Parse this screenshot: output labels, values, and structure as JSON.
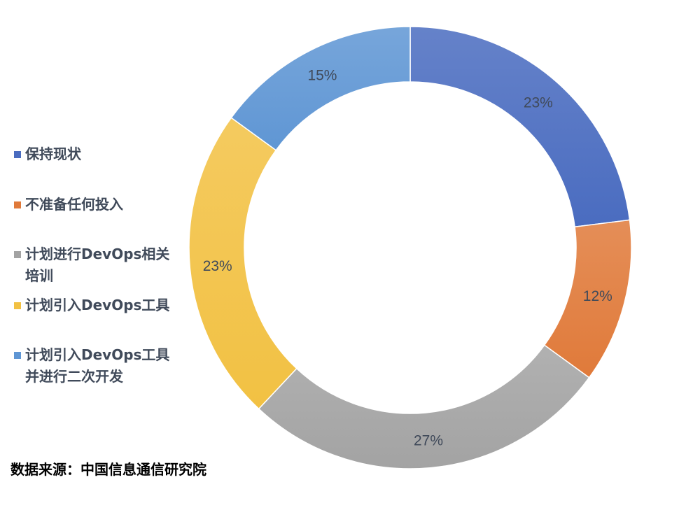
{
  "chart_data": {
    "type": "pie",
    "donut": true,
    "start_angle": "top, clockwise",
    "categories": [
      "保持现状",
      "不准备任何投入",
      "计划进行DevOps相关培训",
      "计划引入DevOps工具",
      "计划引入DevOps工具并进行二次开发"
    ],
    "values": [
      23,
      12,
      27,
      23,
      15
    ],
    "data_labels": [
      "23%",
      "12%",
      "27%",
      "23%",
      "15%"
    ],
    "colors": [
      "#4a6cc0",
      "#e07a3a",
      "#a3a3a3",
      "#f2c143",
      "#5f96d4"
    ],
    "legend_position": "left"
  },
  "source": "数据来源：中国信息通信研究院"
}
